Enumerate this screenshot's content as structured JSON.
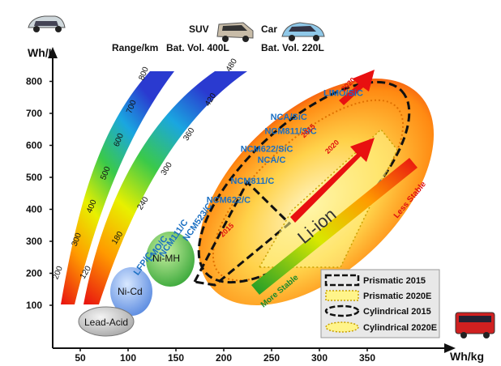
{
  "chart_data": {
    "type": "scatter",
    "xlabel": "Wh/kg",
    "ylabel": "Wh/L",
    "x_ticks": [
      50,
      100,
      150,
      200,
      250,
      300,
      350
    ],
    "y_ticks": [
      100,
      200,
      300,
      400,
      500,
      600,
      700,
      800
    ],
    "xlim": [
      0,
      370
    ],
    "ylim": [
      40,
      830
    ],
    "grid": false,
    "range_label": "Range/km",
    "suv": {
      "label": "SUV",
      "volume": "Bat. Vol. 400L"
    },
    "car": {
      "label": "Car",
      "volume": "Bat. Vol. 220L"
    },
    "range_bands": [
      {
        "name": "SUV Bat. Vol. 400L",
        "labels": [
          "200",
          "300",
          "400",
          "500",
          "600",
          "700",
          "800"
        ]
      },
      {
        "name": "Car Bat. Vol. 220L",
        "labels": [
          "120",
          "180",
          "240",
          "300",
          "360",
          "420",
          "480"
        ]
      }
    ],
    "regions": [
      "Li-ion",
      "Ni-MH",
      "Ni-Cd",
      "Lead-Acid"
    ],
    "chemistries": [
      {
        "label": "LIMO/SiC",
        "x": 325,
        "y": 755
      },
      {
        "label": "NCA/SiC",
        "x": 268,
        "y": 680
      },
      {
        "label": "NCM811/SiC",
        "x": 270,
        "y": 635
      },
      {
        "label": "NCM622/SiC",
        "x": 245,
        "y": 580
      },
      {
        "label": "NCA/C",
        "x": 250,
        "y": 545
      },
      {
        "label": "NCM811/C",
        "x": 230,
        "y": 480
      },
      {
        "label": "NCM622/C",
        "x": 205,
        "y": 420
      },
      {
        "label": "NCM523/C",
        "x": 175,
        "y": 355,
        "rotate": -55
      },
      {
        "label": "NCM111/C",
        "x": 150,
        "y": 305,
        "rotate": -55
      },
      {
        "label": "LMO/C",
        "x": 133,
        "y": 272,
        "rotate": -55
      },
      {
        "label": "LFP/C",
        "x": 118,
        "y": 225,
        "rotate": -55
      }
    ],
    "years": [
      {
        "label": "2015",
        "x": 205,
        "y": 330
      },
      {
        "label": "2015",
        "x": 290,
        "y": 640
      },
      {
        "label": "2020",
        "x": 315,
        "y": 590
      },
      {
        "label": "2020",
        "x": 332,
        "y": 785
      }
    ],
    "stability": {
      "more": "More Stable",
      "less": "Less Stable"
    },
    "legend": [
      {
        "label": "Prismatic   2015"
      },
      {
        "label": "Prismatic   2020E"
      },
      {
        "label": "Cylindrical 2015"
      },
      {
        "label": "Cylindrical 2020E"
      }
    ]
  }
}
